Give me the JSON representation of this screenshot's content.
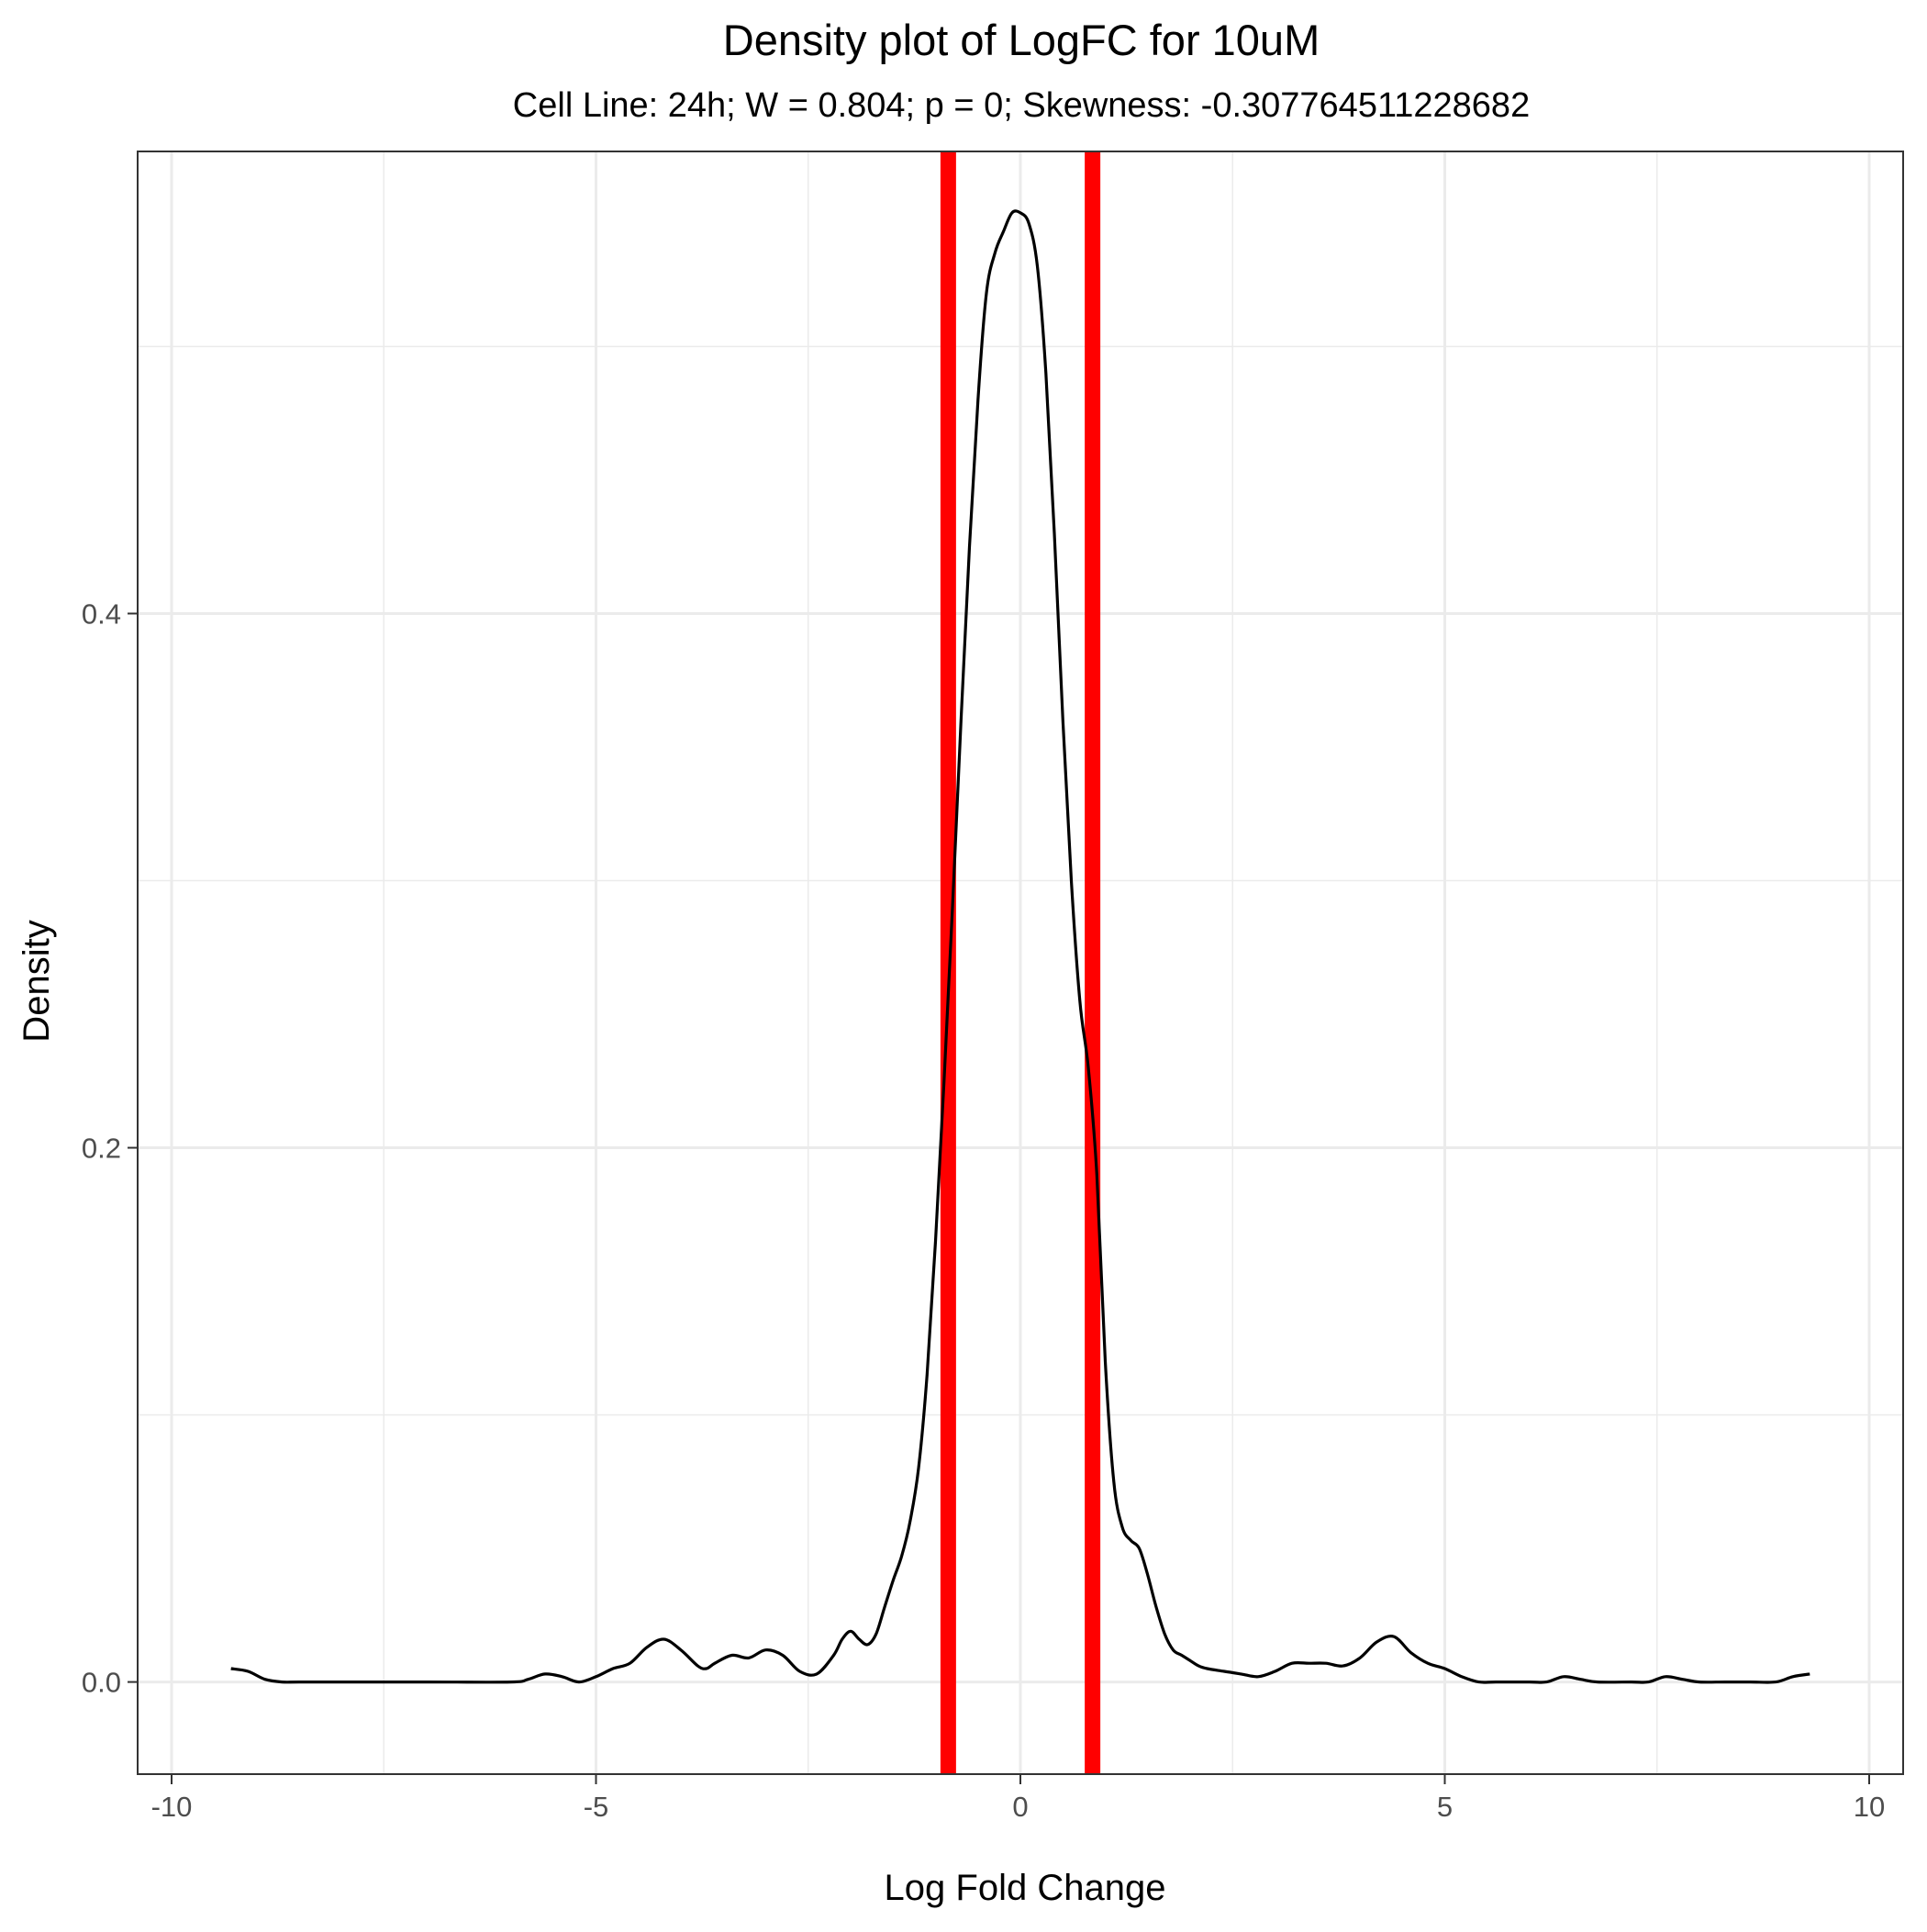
{
  "chart_data": {
    "type": "line",
    "title": "Density plot of LogFC for 10uM",
    "subtitle": "Cell Line: 24h; W = 0.804; p = 0; Skewness: -0.307764511228682",
    "xlabel": "Log Fold Change",
    "ylabel": "Density",
    "xlim": [
      -10.4,
      10.4
    ],
    "ylim": [
      -0.0345,
      0.573
    ],
    "x_ticks": [
      -10,
      -5,
      0,
      5,
      10
    ],
    "x_tick_labels": [
      "-10",
      "-5",
      "0",
      "5",
      "10"
    ],
    "y_ticks": [
      0.0,
      0.2,
      0.4
    ],
    "y_tick_labels": [
      "0.0",
      "0.2",
      "0.4"
    ],
    "grid": true,
    "legend": "none",
    "line_color": "#000000",
    "vline_color": "#ff0000",
    "grid_color": "#ebebeb",
    "series": [
      {
        "x": [
          -9.3,
          -9.1,
          -8.9,
          -8.7,
          -8.5,
          -8.0,
          -7.0,
          -6.0,
          -5.8,
          -5.6,
          -5.4,
          -5.2,
          -5.0,
          -4.8,
          -4.6,
          -4.4,
          -4.2,
          -4.0,
          -3.8,
          -3.7,
          -3.6,
          -3.4,
          -3.2,
          -3.0,
          -2.8,
          -2.6,
          -2.4,
          -2.2,
          -2.1,
          -2.0,
          -1.9,
          -1.8,
          -1.7,
          -1.6,
          -1.5,
          -1.4,
          -1.3,
          -1.2,
          -1.1,
          -1.0,
          -0.9,
          -0.8,
          -0.7,
          -0.6,
          -0.5,
          -0.4,
          -0.3,
          -0.2,
          -0.1,
          0.0,
          0.1,
          0.2,
          0.3,
          0.4,
          0.5,
          0.6,
          0.7,
          0.8,
          0.9,
          1.0,
          1.1,
          1.2,
          1.3,
          1.4,
          1.5,
          1.6,
          1.7,
          1.8,
          1.9,
          2.0,
          2.1,
          2.2,
          2.4,
          2.6,
          2.8,
          3.0,
          3.2,
          3.4,
          3.6,
          3.8,
          4.0,
          4.2,
          4.4,
          4.6,
          4.8,
          5.0,
          5.2,
          5.4,
          5.6,
          6.0,
          6.2,
          6.4,
          6.6,
          6.8,
          7.2,
          7.4,
          7.6,
          7.8,
          8.0,
          8.3,
          8.6,
          8.9,
          9.1,
          9.3
        ],
        "y": [
          0.005,
          0.004,
          0.001,
          0.0,
          0.0,
          0.0,
          0.0,
          0.0,
          0.001,
          0.003,
          0.002,
          0.0,
          0.002,
          0.005,
          0.007,
          0.013,
          0.016,
          0.012,
          0.006,
          0.005,
          0.007,
          0.01,
          0.009,
          0.012,
          0.01,
          0.004,
          0.003,
          0.01,
          0.016,
          0.019,
          0.016,
          0.014,
          0.018,
          0.028,
          0.038,
          0.047,
          0.06,
          0.08,
          0.115,
          0.165,
          0.225,
          0.29,
          0.36,
          0.425,
          0.48,
          0.52,
          0.535,
          0.543,
          0.55,
          0.55,
          0.546,
          0.53,
          0.49,
          0.43,
          0.36,
          0.3,
          0.255,
          0.23,
          0.19,
          0.12,
          0.075,
          0.058,
          0.053,
          0.05,
          0.04,
          0.028,
          0.018,
          0.012,
          0.01,
          0.008,
          0.006,
          0.005,
          0.004,
          0.003,
          0.002,
          0.004,
          0.007,
          0.007,
          0.007,
          0.006,
          0.009,
          0.015,
          0.017,
          0.011,
          0.007,
          0.005,
          0.002,
          0.0,
          0.0,
          0.0,
          0.0,
          0.002,
          0.001,
          0.0,
          0.0,
          0.0,
          0.002,
          0.001,
          0.0,
          0.0,
          0.0,
          0.0,
          0.002,
          0.003
        ]
      }
    ],
    "vlines": [
      -0.85,
      0.85
    ]
  }
}
